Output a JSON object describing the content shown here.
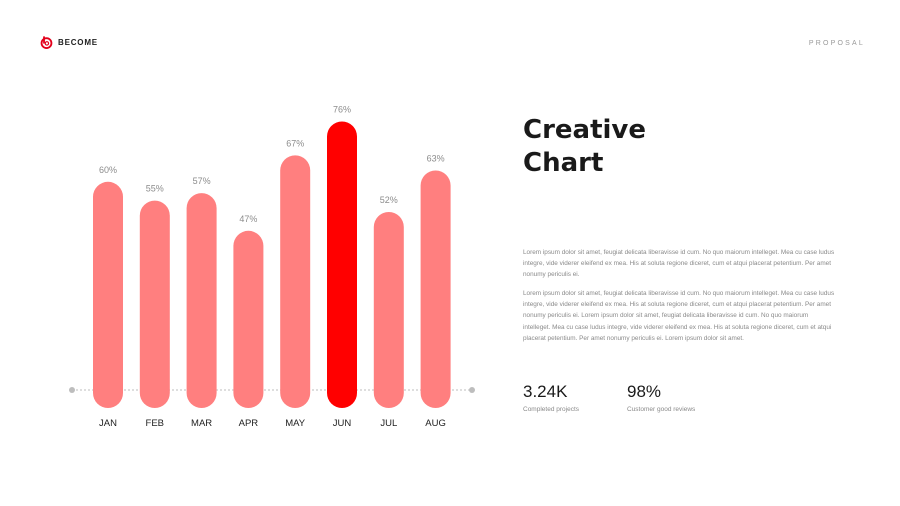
{
  "brand": {
    "name": "BECOME",
    "color": "#e3001b"
  },
  "header": {
    "label": "PROPOSAL"
  },
  "title": {
    "line1": "Creative",
    "line2": "Chart"
  },
  "paragraphs": [
    "Lorem ipsum dolor sit amet, feugiat delicata liberavisse id cum. No quo maiorum intelleget. Mea cu case ludus integre, vide viderer eleifend ex mea. His at soluta regione diceret, cum et atqui placerat petentium. Per amet nonumy periculis ei.",
    "Lorem ipsum dolor sit amet, feugiat delicata liberavisse id cum. No quo maiorum intelleget. Mea cu case ludus integre, vide viderer eleifend ex mea. His at soluta regione diceret, cum et atqui placerat petentium. Per amet nonumy periculis ei. Lorem ipsum dolor sit amet, feugiat delicata liberavisse id cum. No quo maiorum intelleget. Mea cu case ludus integre, vide viderer eleifend ex mea. His at soluta regione diceret, cum et atqui placerat petentium. Per amet nonumy periculis ei. Lorem ipsum dolor sit amet."
  ],
  "stats": [
    {
      "value": "3.24K",
      "label": "Completed projects"
    },
    {
      "value": "98%",
      "label": "Customer good reviews"
    }
  ],
  "chart_data": {
    "type": "bar",
    "categories": [
      "JAN",
      "FEB",
      "MAR",
      "APR",
      "MAY",
      "JUN",
      "JUL",
      "AUG"
    ],
    "values": [
      60,
      55,
      57,
      47,
      67,
      76,
      52,
      63
    ],
    "data_labels": [
      "60%",
      "55%",
      "57%",
      "47%",
      "67%",
      "76%",
      "52%",
      "63%"
    ],
    "highlight": "JUN",
    "colors": {
      "bar": "#ff7f7f",
      "highlight": "#ff0000",
      "baseline": "#bdbdbd",
      "label": "#8c8c8c",
      "category": "#222222"
    },
    "grid": false
  }
}
